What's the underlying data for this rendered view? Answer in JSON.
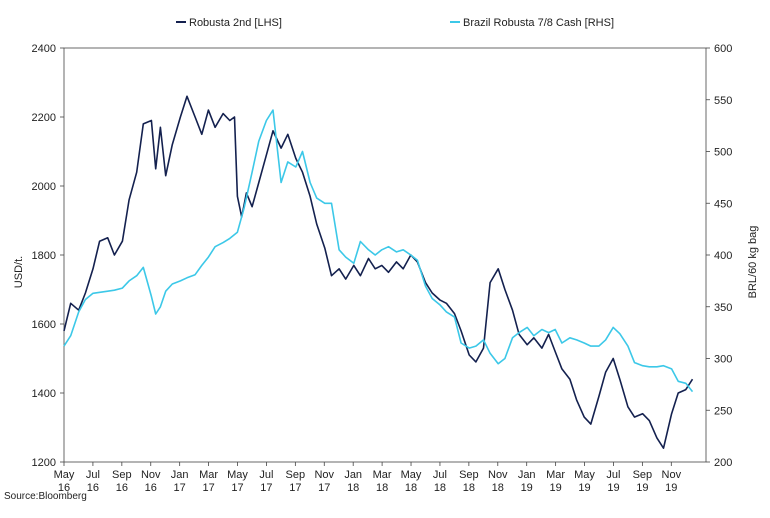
{
  "chart_data": {
    "type": "line",
    "source": "Source:Bloomberg",
    "y_left": {
      "label": "USD/t.",
      "range": [
        1200,
        2400
      ],
      "ticks": [
        "1200",
        "1400",
        "1600",
        "1800",
        "2000",
        "2200",
        "2400"
      ]
    },
    "y_right": {
      "label": "BRL/60 kg bag",
      "range": [
        200,
        600
      ],
      "ticks": [
        "200",
        "250",
        "300",
        "350",
        "400",
        "450",
        "500",
        "550",
        "600"
      ]
    },
    "x_ticks": [
      {
        "month": "May",
        "year": "16"
      },
      {
        "month": "Jul",
        "year": "16"
      },
      {
        "month": "Sep",
        "year": "16"
      },
      {
        "month": "Nov",
        "year": "16"
      },
      {
        "month": "Jan",
        "year": "17"
      },
      {
        "month": "Mar",
        "year": "17"
      },
      {
        "month": "May",
        "year": "17"
      },
      {
        "month": "Jul",
        "year": "17"
      },
      {
        "month": "Sep",
        "year": "17"
      },
      {
        "month": "Nov",
        "year": "17"
      },
      {
        "month": "Jan",
        "year": "18"
      },
      {
        "month": "Mar",
        "year": "18"
      },
      {
        "month": "May",
        "year": "18"
      },
      {
        "month": "Jul",
        "year": "18"
      },
      {
        "month": "Sep",
        "year": "18"
      },
      {
        "month": "Nov",
        "year": "18"
      },
      {
        "month": "Jan",
        "year": "19"
      },
      {
        "month": "Mar",
        "year": "19"
      },
      {
        "month": "May",
        "year": "19"
      },
      {
        "month": "Jul",
        "year": "19"
      },
      {
        "month": "Sep",
        "year": "19"
      },
      {
        "month": "Nov",
        "year": "19"
      }
    ],
    "legend_placement": "top",
    "series": [
      {
        "name": "Robusta 2nd [LHS]",
        "axis": "left",
        "color": "#14214f",
        "points": [
          [
            "2016-05",
            1580
          ],
          [
            "2016-05-15",
            1660
          ],
          [
            "2016-06",
            1640
          ],
          [
            "2016-06-15",
            1690
          ],
          [
            "2016-07",
            1760
          ],
          [
            "2016-07-15",
            1840
          ],
          [
            "2016-08",
            1850
          ],
          [
            "2016-08-15",
            1800
          ],
          [
            "2016-09",
            1840
          ],
          [
            "2016-09-15",
            1960
          ],
          [
            "2016-10",
            2040
          ],
          [
            "2016-10-15",
            2180
          ],
          [
            "2016-11",
            2190
          ],
          [
            "2016-11-10",
            2050
          ],
          [
            "2016-11-20",
            2170
          ],
          [
            "2016-12",
            2030
          ],
          [
            "2016-12-15",
            2120
          ],
          [
            "2017-01",
            2200
          ],
          [
            "2017-01-15",
            2260
          ],
          [
            "2017-02",
            2200
          ],
          [
            "2017-02-15",
            2150
          ],
          [
            "2017-03",
            2220
          ],
          [
            "2017-03-15",
            2170
          ],
          [
            "2017-04",
            2210
          ],
          [
            "2017-04-15",
            2190
          ],
          [
            "2017-04-25",
            2200
          ],
          [
            "2017-05",
            1970
          ],
          [
            "2017-05-10",
            1910
          ],
          [
            "2017-05-20",
            1980
          ],
          [
            "2017-06",
            1940
          ],
          [
            "2017-06-15",
            2010
          ],
          [
            "2017-07",
            2090
          ],
          [
            "2017-07-15",
            2160
          ],
          [
            "2017-08",
            2110
          ],
          [
            "2017-08-15",
            2150
          ],
          [
            "2017-09",
            2080
          ],
          [
            "2017-09-15",
            2040
          ],
          [
            "2017-10",
            1970
          ],
          [
            "2017-10-15",
            1890
          ],
          [
            "2017-11",
            1820
          ],
          [
            "2017-11-15",
            1740
          ],
          [
            "2017-12",
            1760
          ],
          [
            "2017-12-15",
            1730
          ],
          [
            "2018-01",
            1770
          ],
          [
            "2018-01-15",
            1740
          ],
          [
            "2018-02",
            1790
          ],
          [
            "2018-02-15",
            1760
          ],
          [
            "2018-03",
            1770
          ],
          [
            "2018-03-15",
            1750
          ],
          [
            "2018-04",
            1780
          ],
          [
            "2018-04-15",
            1760
          ],
          [
            "2018-05",
            1800
          ],
          [
            "2018-05-15",
            1780
          ],
          [
            "2018-06",
            1720
          ],
          [
            "2018-06-15",
            1690
          ],
          [
            "2018-07",
            1670
          ],
          [
            "2018-07-15",
            1660
          ],
          [
            "2018-08",
            1630
          ],
          [
            "2018-08-15",
            1580
          ],
          [
            "2018-09",
            1510
          ],
          [
            "2018-09-15",
            1490
          ],
          [
            "2018-10",
            1530
          ],
          [
            "2018-10-15",
            1720
          ],
          [
            "2018-11",
            1760
          ],
          [
            "2018-11-15",
            1700
          ],
          [
            "2018-12",
            1640
          ],
          [
            "2018-12-15",
            1570
          ],
          [
            "2019-01",
            1540
          ],
          [
            "2019-01-15",
            1560
          ],
          [
            "2019-02",
            1530
          ],
          [
            "2019-02-15",
            1570
          ],
          [
            "2019-03",
            1520
          ],
          [
            "2019-03-15",
            1470
          ],
          [
            "2019-04",
            1440
          ],
          [
            "2019-04-15",
            1380
          ],
          [
            "2019-05",
            1330
          ],
          [
            "2019-05-15",
            1310
          ],
          [
            "2019-06",
            1390
          ],
          [
            "2019-06-15",
            1460
          ],
          [
            "2019-07",
            1500
          ],
          [
            "2019-07-15",
            1440
          ],
          [
            "2019-08",
            1360
          ],
          [
            "2019-08-15",
            1330
          ],
          [
            "2019-09",
            1340
          ],
          [
            "2019-09-15",
            1320
          ],
          [
            "2019-10",
            1270
          ],
          [
            "2019-10-15",
            1240
          ],
          [
            "2019-11",
            1340
          ],
          [
            "2019-11-15",
            1400
          ],
          [
            "2019-12",
            1410
          ],
          [
            "2019-12-15",
            1440
          ]
        ]
      },
      {
        "name": "Brazil Robusta 7/8 Cash [RHS]",
        "axis": "right",
        "color": "#3cc8e8",
        "points": [
          [
            "2016-05",
            312
          ],
          [
            "2016-05-15",
            322
          ],
          [
            "2016-06",
            345
          ],
          [
            "2016-06-15",
            357
          ],
          [
            "2016-07",
            363
          ],
          [
            "2016-08",
            365
          ],
          [
            "2016-08-15",
            366
          ],
          [
            "2016-09",
            368
          ],
          [
            "2016-09-15",
            375
          ],
          [
            "2016-10",
            380
          ],
          [
            "2016-10-15",
            388
          ],
          [
            "2016-11",
            360
          ],
          [
            "2016-11-10",
            343
          ],
          [
            "2016-11-20",
            350
          ],
          [
            "2016-12",
            365
          ],
          [
            "2016-12-15",
            372
          ],
          [
            "2017-01",
            375
          ],
          [
            "2017-01-15",
            378
          ],
          [
            "2017-02",
            381
          ],
          [
            "2017-02-15",
            390
          ],
          [
            "2017-03",
            398
          ],
          [
            "2017-03-15",
            408
          ],
          [
            "2017-04",
            412
          ],
          [
            "2017-04-15",
            416
          ],
          [
            "2017-05",
            422
          ],
          [
            "2017-05-15",
            445
          ],
          [
            "2017-06",
            480
          ],
          [
            "2017-06-15",
            510
          ],
          [
            "2017-07",
            530
          ],
          [
            "2017-07-15",
            540
          ],
          [
            "2017-08",
            470
          ],
          [
            "2017-08-15",
            490
          ],
          [
            "2017-09",
            485
          ],
          [
            "2017-09-15",
            500
          ],
          [
            "2017-10",
            470
          ],
          [
            "2017-10-15",
            455
          ],
          [
            "2017-11",
            450
          ],
          [
            "2017-11-15",
            450
          ],
          [
            "2017-12",
            405
          ],
          [
            "2017-12-15",
            398
          ],
          [
            "2018-01",
            392
          ],
          [
            "2018-01-15",
            413
          ],
          [
            "2018-02",
            405
          ],
          [
            "2018-02-15",
            400
          ],
          [
            "2018-03",
            405
          ],
          [
            "2018-03-15",
            408
          ],
          [
            "2018-04",
            403
          ],
          [
            "2018-04-15",
            405
          ],
          [
            "2018-05",
            400
          ],
          [
            "2018-05-15",
            395
          ],
          [
            "2018-06",
            370
          ],
          [
            "2018-06-15",
            358
          ],
          [
            "2018-07",
            352
          ],
          [
            "2018-07-15",
            345
          ],
          [
            "2018-08",
            340
          ],
          [
            "2018-08-15",
            315
          ],
          [
            "2018-09",
            310
          ],
          [
            "2018-09-15",
            312
          ],
          [
            "2018-10",
            318
          ],
          [
            "2018-10-15",
            305
          ],
          [
            "2018-11",
            295
          ],
          [
            "2018-11-15",
            300
          ],
          [
            "2018-12",
            320
          ],
          [
            "2018-12-15",
            325
          ],
          [
            "2019-01",
            330
          ],
          [
            "2019-01-15",
            322
          ],
          [
            "2019-02",
            328
          ],
          [
            "2019-02-15",
            325
          ],
          [
            "2019-03",
            328
          ],
          [
            "2019-03-15",
            315
          ],
          [
            "2019-04",
            320
          ],
          [
            "2019-04-15",
            318
          ],
          [
            "2019-05",
            315
          ],
          [
            "2019-05-15",
            312
          ],
          [
            "2019-06",
            312
          ],
          [
            "2019-06-15",
            318
          ],
          [
            "2019-07",
            330
          ],
          [
            "2019-07-15",
            324
          ],
          [
            "2019-08",
            312
          ],
          [
            "2019-08-15",
            296
          ],
          [
            "2019-09",
            293
          ],
          [
            "2019-09-15",
            292
          ],
          [
            "2019-10",
            292
          ],
          [
            "2019-10-15",
            293
          ],
          [
            "2019-11",
            290
          ],
          [
            "2019-11-15",
            278
          ],
          [
            "2019-12",
            276
          ],
          [
            "2019-12-15",
            268
          ]
        ]
      }
    ]
  }
}
